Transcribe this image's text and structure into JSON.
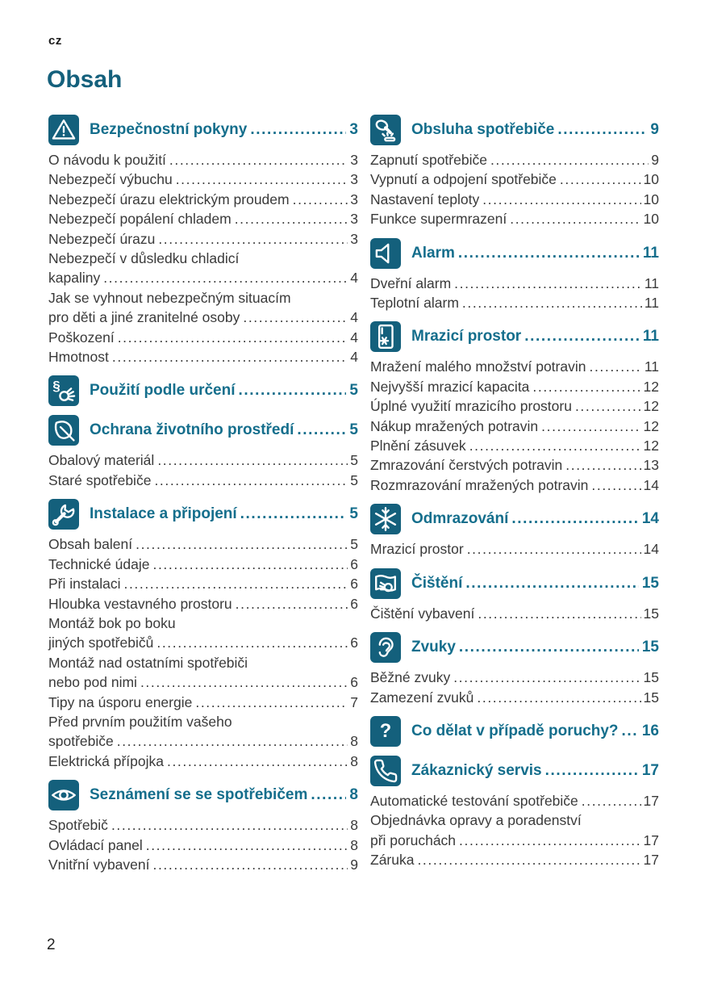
{
  "page": {
    "language_code": "cz",
    "title": "Obsah",
    "page_number": "2"
  },
  "colors": {
    "accent_teal": "#14607c",
    "heading_teal": "#146e8c",
    "body_text": "#3a3a3a"
  },
  "columns": [
    {
      "sections": [
        {
          "icon": "warning-icon",
          "title": "Bezpečnostní pokyny",
          "page": "3",
          "items": [
            {
              "lines": [
                "O návodu k použití"
              ],
              "page": "3"
            },
            {
              "lines": [
                "Nebezpečí výbuchu"
              ],
              "page": "3"
            },
            {
              "lines": [
                "Nebezpečí úrazu elektrickým proudem"
              ],
              "page": "3"
            },
            {
              "lines": [
                "Nebezpečí popálení chladem"
              ],
              "page": "3"
            },
            {
              "lines": [
                "Nebezpečí úrazu"
              ],
              "page": "3"
            },
            {
              "lines": [
                "Nebezpečí v důsledku chladicí",
                "kapaliny"
              ],
              "page": "4"
            },
            {
              "lines": [
                "Jak se vyhnout nebezpečným situacím",
                "pro děti a jiné zranitelné osoby"
              ],
              "page": "4"
            },
            {
              "lines": [
                "Poškození"
              ],
              "page": "4"
            },
            {
              "lines": [
                "Hmotnost"
              ],
              "page": "4"
            }
          ]
        },
        {
          "icon": "paragraph-hand-icon",
          "title": "Použití podle určení",
          "page": "5",
          "items": []
        },
        {
          "icon": "leaf-icon",
          "title": "Ochrana životního prostředí",
          "page": "5",
          "items": [
            {
              "lines": [
                "Obalový materiál"
              ],
              "page": "5"
            },
            {
              "lines": [
                "Staré spotřebiče"
              ],
              "page": "5"
            }
          ]
        },
        {
          "icon": "wrench-icon",
          "title": "Instalace a připojení",
          "page": "5",
          "items": [
            {
              "lines": [
                "Obsah balení"
              ],
              "page": "5"
            },
            {
              "lines": [
                "Technické údaje"
              ],
              "page": "6"
            },
            {
              "lines": [
                "Při instalaci"
              ],
              "page": "6"
            },
            {
              "lines": [
                "Hloubka vestavného prostoru"
              ],
              "page": "6"
            },
            {
              "lines": [
                "Montáž bok po boku",
                "jiných spotřebičů"
              ],
              "page": "6"
            },
            {
              "lines": [
                "Montáž nad ostatními spotřebiči",
                "nebo pod nimi"
              ],
              "page": "6"
            },
            {
              "lines": [
                "Tipy na úsporu energie"
              ],
              "page": "7"
            },
            {
              "lines": [
                "Před prvním použitím vašeho",
                "spotřebiče"
              ],
              "page": "8"
            },
            {
              "lines": [
                "Elektrická přípojka"
              ],
              "page": "8"
            }
          ]
        },
        {
          "icon": "eye-icon",
          "title": "Seznámení se se spotřebičem",
          "page": "8",
          "items": [
            {
              "lines": [
                "Spotřebič"
              ],
              "page": "8"
            },
            {
              "lines": [
                "Ovládací panel"
              ],
              "page": "8"
            },
            {
              "lines": [
                "Vnitřní vybavení"
              ],
              "page": "9"
            }
          ]
        }
      ]
    },
    {
      "sections": [
        {
          "icon": "hand-operate-icon",
          "title": "Obsluha spotřebiče",
          "page": "9",
          "items": [
            {
              "lines": [
                "Zapnutí spotřebiče"
              ],
              "page": "9"
            },
            {
              "lines": [
                "Vypnutí a odpojení spotřebiče"
              ],
              "page": "10"
            },
            {
              "lines": [
                "Nastavení teploty"
              ],
              "page": "10"
            },
            {
              "lines": [
                "Funkce supermrazení"
              ],
              "page": "10"
            }
          ]
        },
        {
          "icon": "speaker-icon",
          "title": "Alarm",
          "page": "11",
          "items": [
            {
              "lines": [
                "Dveřní alarm"
              ],
              "page": "11"
            },
            {
              "lines": [
                "Teplotní alarm"
              ],
              "page": "11"
            }
          ]
        },
        {
          "icon": "freezer-icon",
          "title": "Mrazicí prostor",
          "page": "11",
          "items": [
            {
              "lines": [
                "Mražení malého množství potravin"
              ],
              "page": "11"
            },
            {
              "lines": [
                "Nejvyšší mrazicí kapacita"
              ],
              "page": "12"
            },
            {
              "lines": [
                "Úplné využití mrazicího prostoru"
              ],
              "page": "12"
            },
            {
              "lines": [
                "Nákup mražených potravin"
              ],
              "page": "12"
            },
            {
              "lines": [
                "Plnění zásuvek"
              ],
              "page": "12"
            },
            {
              "lines": [
                "Zmrazování čerstvých potravin"
              ],
              "page": "13"
            },
            {
              "lines": [
                "Rozmrazování mražených potravin"
              ],
              "page": "14"
            }
          ]
        },
        {
          "icon": "snowflake-icon",
          "title": "Odmrazování",
          "page": "14",
          "items": [
            {
              "lines": [
                "Mrazicí prostor"
              ],
              "page": "14"
            }
          ]
        },
        {
          "icon": "cleaning-cloth-icon",
          "title": "Čištění",
          "page": "15",
          "items": [
            {
              "lines": [
                "Čištění vybavení"
              ],
              "page": "15"
            }
          ]
        },
        {
          "icon": "ear-icon",
          "title": "Zvuky",
          "page": "15",
          "items": [
            {
              "lines": [
                "Běžné zvuky"
              ],
              "page": "15"
            },
            {
              "lines": [
                "Zamezení zvuků"
              ],
              "page": "15"
            }
          ]
        },
        {
          "icon": "question-icon",
          "title": "Co dělat v případě poruchy?",
          "page": "16",
          "items": []
        },
        {
          "icon": "phone-icon",
          "title": "Zákaznický servis",
          "page": "17",
          "items": [
            {
              "lines": [
                "Automatické testování spotřebiče"
              ],
              "page": "17"
            },
            {
              "lines": [
                "Objednávka opravy a poradenství",
                "při poruchách"
              ],
              "page": "17"
            },
            {
              "lines": [
                "Záruka"
              ],
              "page": "17"
            }
          ]
        }
      ]
    }
  ]
}
